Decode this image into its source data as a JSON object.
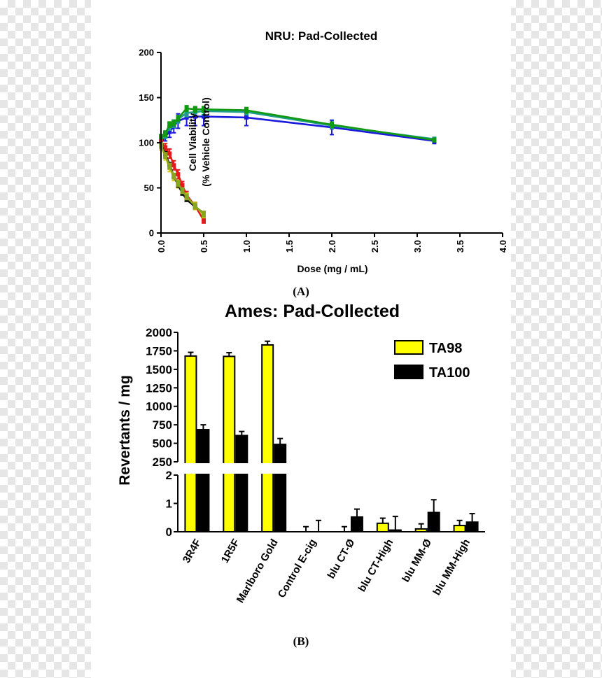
{
  "panel_a_label": "(A)",
  "panel_b_label": "(B)",
  "chart_data": [
    {
      "type": "line",
      "title": "NRU: Pad-Collected",
      "xlabel": "Dose (mg / mL)",
      "ylabel_line1": "Cell Viability",
      "ylabel_line2": "(% Vehicle Control)",
      "xlim": [
        0,
        4.0
      ],
      "ylim": [
        0,
        200
      ],
      "xticks": [
        "0.0",
        "0.5",
        "1.0",
        "1.5",
        "2.0",
        "2.5",
        "3.0",
        "3.5",
        "4.0"
      ],
      "yticks": [
        "0",
        "50",
        "100",
        "150",
        "200"
      ],
      "series": [
        {
          "name": "blue",
          "color": "#1a1adc",
          "x": [
            0,
            0.05,
            0.1,
            0.15,
            0.2,
            0.3,
            0.4,
            0.5,
            1.0,
            2.0,
            3.2
          ],
          "y": [
            100,
            107,
            112,
            118,
            124,
            128,
            129,
            129,
            128,
            117,
            102
          ],
          "err": [
            5,
            5,
            6,
            7,
            8,
            9,
            10,
            10,
            9,
            8,
            3
          ]
        },
        {
          "name": "teal",
          "color": "#1e9c8c",
          "x": [
            0,
            0.05,
            0.1,
            0.15,
            0.2,
            0.3,
            0.4,
            0.5,
            1.0,
            2.0,
            3.2
          ],
          "y": [
            103,
            108,
            118,
            121,
            126,
            133,
            134,
            135,
            134,
            119,
            104
          ],
          "err": [
            3,
            3,
            4,
            4,
            4,
            4,
            4,
            4,
            3,
            3,
            2
          ]
        },
        {
          "name": "green",
          "color": "#119a11",
          "x": [
            0,
            0.05,
            0.1,
            0.15,
            0.2,
            0.3,
            0.4,
            0.5,
            1.0,
            2.0,
            3.2
          ],
          "y": [
            106,
            110,
            120,
            122,
            127,
            138,
            137,
            137,
            136,
            120,
            103
          ],
          "err": [
            3,
            3,
            3,
            3,
            3,
            3,
            3,
            3,
            3,
            3,
            2
          ]
        },
        {
          "name": "red",
          "color": "#e31a1a",
          "x": [
            0,
            0.05,
            0.1,
            0.15,
            0.2,
            0.25,
            0.3,
            0.4,
            0.5
          ],
          "y": [
            100,
            95,
            88,
            75,
            65,
            53,
            42,
            30,
            14
          ],
          "err": [
            3,
            4,
            5,
            5,
            5,
            4,
            4,
            4,
            3
          ]
        },
        {
          "name": "yellow",
          "color": "#d6cc10",
          "x": [
            0,
            0.05,
            0.1,
            0.15,
            0.2,
            0.25,
            0.3,
            0.4,
            0.5
          ],
          "y": [
            96,
            85,
            72,
            62,
            54,
            46,
            40,
            30,
            20
          ],
          "err": [
            4,
            4,
            4,
            4,
            4,
            4,
            4,
            4,
            3
          ]
        },
        {
          "name": "black",
          "color": "#111111",
          "x": [
            0,
            0.05,
            0.1,
            0.15,
            0.2,
            0.25,
            0.3,
            0.4,
            0.5
          ],
          "y": [
            98,
            88,
            76,
            63,
            53,
            44,
            37,
            29,
            22
          ],
          "err": [
            2,
            2,
            2,
            2,
            2,
            2,
            2,
            2,
            2
          ]
        },
        {
          "name": "olive",
          "color": "#8aa620",
          "x": [
            0,
            0.05,
            0.1,
            0.15,
            0.2,
            0.25,
            0.3,
            0.4,
            0.5
          ],
          "y": [
            97,
            86,
            74,
            63,
            55,
            47,
            40,
            30,
            21
          ],
          "err": [
            3,
            3,
            3,
            3,
            3,
            3,
            3,
            3,
            3
          ]
        }
      ]
    },
    {
      "type": "bar",
      "title": "Ames: Pad-Collected",
      "ylabel": "Revertants / mg",
      "categories": [
        "3R4F",
        "1R5F",
        "Marlboro Gold",
        "Control E-cig",
        "blu CT-Ø",
        "blu CT-High",
        "blu MM-Ø",
        "blu MM-High"
      ],
      "upper_ylim": [
        250,
        2000
      ],
      "lower_ylim": [
        0,
        2
      ],
      "upper_yticks": [
        "250",
        "500",
        "750",
        "1000",
        "1250",
        "1500",
        "1750",
        "2000"
      ],
      "lower_yticks": [
        "0",
        "1",
        "2"
      ],
      "series": [
        {
          "name": "TA98",
          "color": "#ffff00",
          "values": [
            1680,
            1675,
            1830,
            0,
            0,
            0.3,
            0.1,
            0.22
          ],
          "err": [
            50,
            50,
            50,
            0.18,
            0.18,
            0.18,
            0.18,
            0.18
          ]
        },
        {
          "name": "TA100",
          "color": "#000000",
          "values": [
            685,
            605,
            485,
            0,
            0.52,
            0.06,
            0.68,
            0.34
          ],
          "err": [
            65,
            55,
            80,
            0.4,
            0.28,
            0.48,
            0.45,
            0.3
          ]
        }
      ],
      "legend": [
        {
          "label": "TA98",
          "color": "#ffff00"
        },
        {
          "label": "TA100",
          "color": "#000000"
        }
      ],
      "legend_position": "top-right",
      "axis_break": true
    }
  ]
}
